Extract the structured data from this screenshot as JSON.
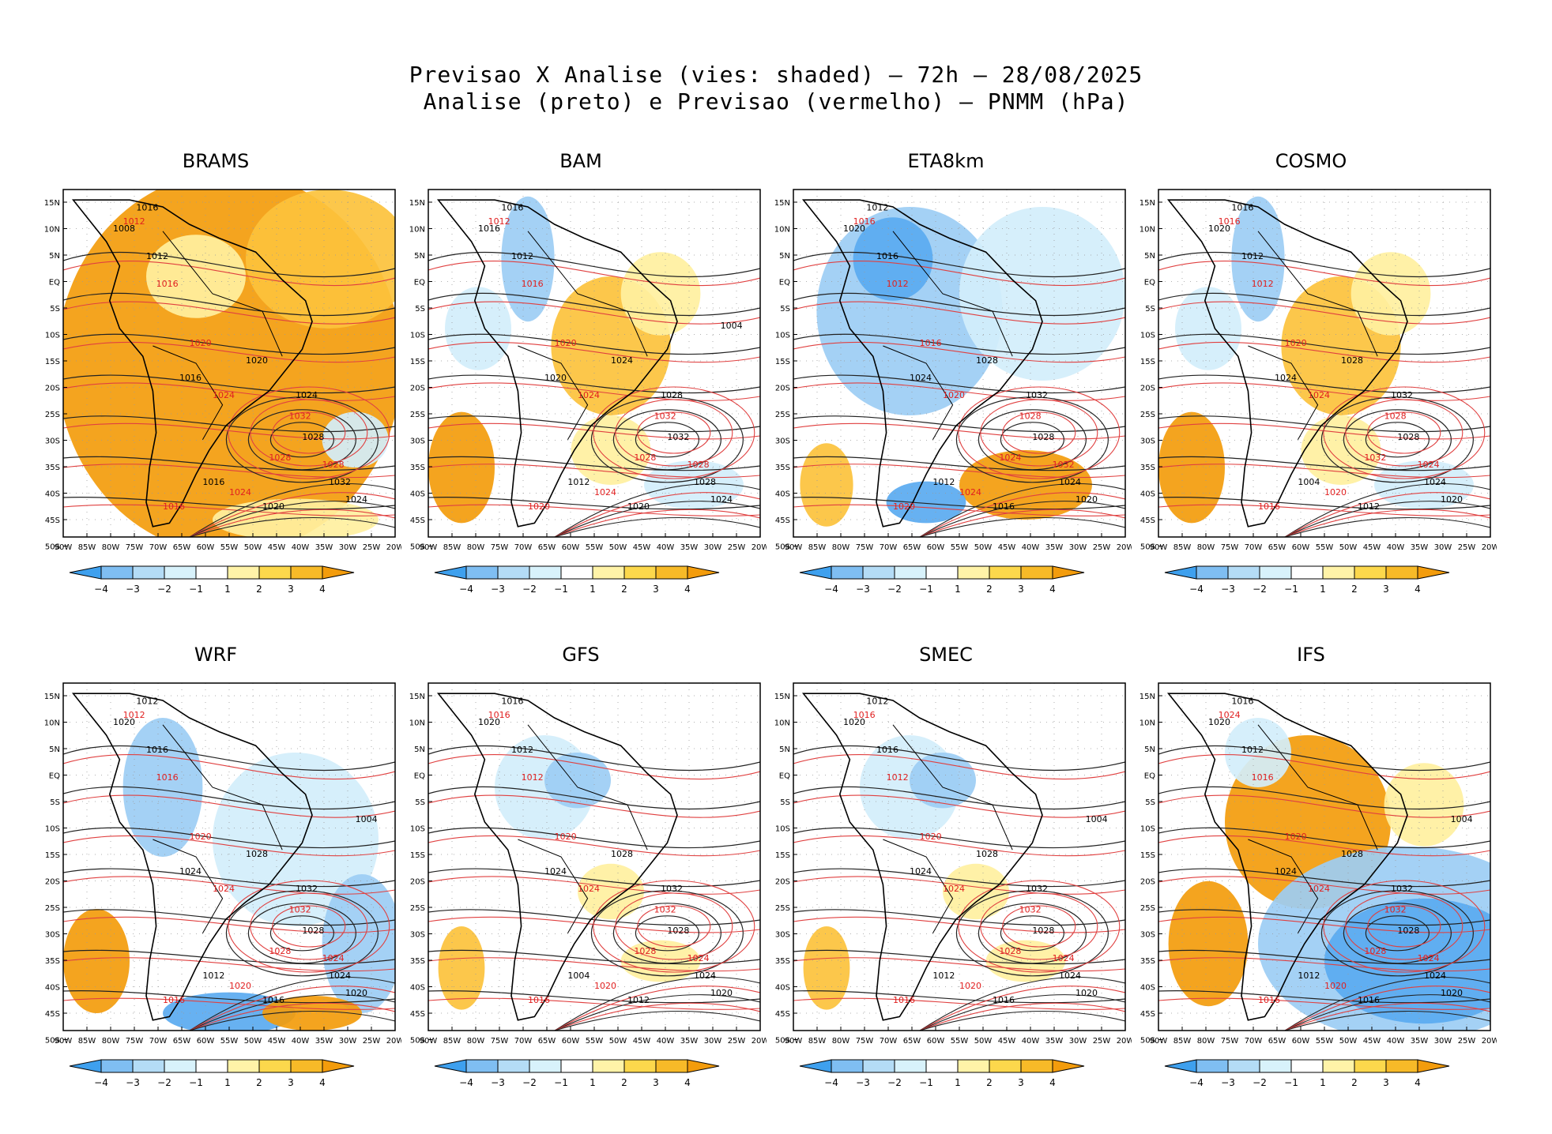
{
  "title_line1": "Previsao X Analise (vies: shaded) – 72h – 28/08/2025",
  "title_line2": "Analise (preto) e Previsao (vermelho) – PNMM (hPa)",
  "lat_labels": [
    "15N",
    "10N",
    "5N",
    "EQ",
    "5S",
    "10S",
    "15S",
    "20S",
    "25S",
    "30S",
    "35S",
    "40S",
    "45S",
    "50S"
  ],
  "lon_labels": [
    "90W",
    "85W",
    "80W",
    "75W",
    "70W",
    "65W",
    "60W",
    "55W",
    "50W",
    "45W",
    "40W",
    "35W",
    "30W",
    "25W",
    "20W"
  ],
  "colorbar": {
    "labels": [
      "−4",
      "−3",
      "−2",
      "−1",
      "1",
      "2",
      "3",
      "4"
    ],
    "colors": [
      "#3ea0ee",
      "#7fbef2",
      "#b4dcf6",
      "#d8f2fb",
      "#ffffff",
      "#fff3a8",
      "#fcd84c",
      "#f7ba28",
      "#f39c0c"
    ]
  },
  "panels": [
    {
      "name": "BRAMS",
      "bias": "warm-strong",
      "black_labels": [
        "1016",
        "1012",
        "1008",
        "1016",
        "1020",
        "1024",
        "1028",
        "1032",
        "1024",
        "1020",
        "1016"
      ],
      "red_labels": [
        "1012",
        "1016",
        "1020",
        "1024",
        "1028",
        "1032",
        "1028",
        "1024",
        "1016"
      ]
    },
    {
      "name": "BAM",
      "bias": "mixed",
      "black_labels": [
        "1016",
        "1012",
        "1016",
        "1020",
        "1024",
        "1028",
        "1032",
        "1028",
        "1024",
        "1020",
        "1012",
        "1004"
      ],
      "red_labels": [
        "1012",
        "1016",
        "1020",
        "1024",
        "1028",
        "1032",
        "1028",
        "1024",
        "1020"
      ]
    },
    {
      "name": "ETA8km",
      "bias": "cold",
      "black_labels": [
        "1012",
        "1016",
        "1020",
        "1024",
        "1028",
        "1032",
        "1028",
        "1024",
        "1020",
        "1016",
        "1012"
      ],
      "red_labels": [
        "1016",
        "1012",
        "1016",
        "1020",
        "1024",
        "1028",
        "1032",
        "1024",
        "1020"
      ]
    },
    {
      "name": "COSMO",
      "bias": "mixed",
      "black_labels": [
        "1016",
        "1012",
        "1020",
        "1024",
        "1028",
        "1032",
        "1028",
        "1024",
        "1020",
        "1012",
        "1004"
      ],
      "red_labels": [
        "1016",
        "1012",
        "1020",
        "1024",
        "1032",
        "1028",
        "1024",
        "1020",
        "1016"
      ]
    },
    {
      "name": "WRF",
      "bias": "cold-south",
      "black_labels": [
        "1012",
        "1016",
        "1020",
        "1024",
        "1028",
        "1032",
        "1028",
        "1024",
        "1020",
        "1016",
        "1012",
        "1004"
      ],
      "red_labels": [
        "1012",
        "1016",
        "1020",
        "1024",
        "1028",
        "1032",
        "1024",
        "1020",
        "1016"
      ]
    },
    {
      "name": "GFS",
      "bias": "slight",
      "black_labels": [
        "1016",
        "1012",
        "1020",
        "1024",
        "1028",
        "1032",
        "1028",
        "1024",
        "1020",
        "1012",
        "1004"
      ],
      "red_labels": [
        "1016",
        "1012",
        "1020",
        "1024",
        "1028",
        "1032",
        "1024",
        "1020",
        "1016"
      ]
    },
    {
      "name": "SMEC",
      "bias": "slight",
      "black_labels": [
        "1012",
        "1016",
        "1020",
        "1024",
        "1028",
        "1032",
        "1028",
        "1024",
        "1020",
        "1016",
        "1012",
        "1004"
      ],
      "red_labels": [
        "1016",
        "1012",
        "1020",
        "1024",
        "1028",
        "1032",
        "1024",
        "1020",
        "1016"
      ]
    },
    {
      "name": "IFS",
      "bias": "warm-cold",
      "black_labels": [
        "1016",
        "1012",
        "1020",
        "1024",
        "1028",
        "1032",
        "1028",
        "1024",
        "1020",
        "1016",
        "1012",
        "1004"
      ],
      "red_labels": [
        "1024",
        "1016",
        "1020",
        "1024",
        "1028",
        "1032",
        "1024",
        "1020",
        "1016"
      ]
    }
  ]
}
